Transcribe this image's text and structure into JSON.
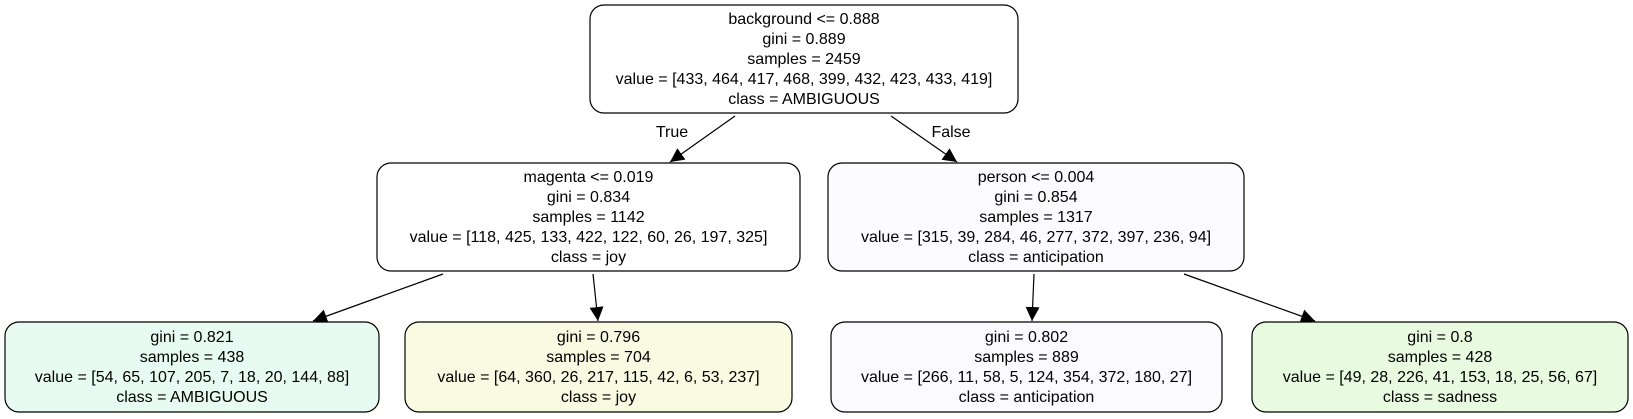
{
  "tree": {
    "nodes": [
      {
        "id": "root",
        "lines": [
          "background <= 0.888",
          "gini = 0.889",
          "samples = 2459",
          "value = [433, 464, 417, 468, 399, 432, 423, 433, 419]",
          "class = AMBIGUOUS"
        ],
        "fill": "#ffffff"
      },
      {
        "id": "left",
        "lines": [
          "magenta <= 0.019",
          "gini = 0.834",
          "samples = 1142",
          "value = [118, 425, 133, 422, 122, 60, 26, 197, 325]",
          "class = joy"
        ],
        "fill": "#ffffff"
      },
      {
        "id": "right",
        "lines": [
          "person <= 0.004",
          "gini = 0.854",
          "samples = 1317",
          "value = [315, 39, 284, 46, 277, 372, 397, 236, 94]",
          "class = anticipation"
        ],
        "fill": "#fcfbff"
      },
      {
        "id": "left-left",
        "lines": [
          "gini = 0.821",
          "samples = 438",
          "value = [54, 65, 107, 205, 7, 18, 20, 144, 88]",
          "class = AMBIGUOUS"
        ],
        "fill": "#e8fbf3"
      },
      {
        "id": "left-right",
        "lines": [
          "gini = 0.796",
          "samples = 704",
          "value = [64, 360, 26, 217, 115, 42, 6, 53, 237]",
          "class = joy"
        ],
        "fill": "#f8fae2"
      },
      {
        "id": "right-left",
        "lines": [
          "gini = 0.802",
          "samples = 889",
          "value = [266, 11, 58, 5, 124, 354, 372, 180, 27]",
          "class = anticipation"
        ],
        "fill": "#fbfaff"
      },
      {
        "id": "right-right",
        "lines": [
          "gini = 0.8",
          "samples = 428",
          "value = [49, 28, 226, 41, 153, 18, 25, 56, 67]",
          "class = sadness"
        ],
        "fill": "#e8fbe0"
      }
    ],
    "edges": [
      {
        "from": "root",
        "to": "left",
        "label": "True"
      },
      {
        "from": "root",
        "to": "right",
        "label": "False"
      },
      {
        "from": "left",
        "to": "left-left",
        "label": ""
      },
      {
        "from": "left",
        "to": "left-right",
        "label": ""
      },
      {
        "from": "right",
        "to": "right-left",
        "label": ""
      },
      {
        "from": "right",
        "to": "right-right",
        "label": ""
      }
    ]
  }
}
